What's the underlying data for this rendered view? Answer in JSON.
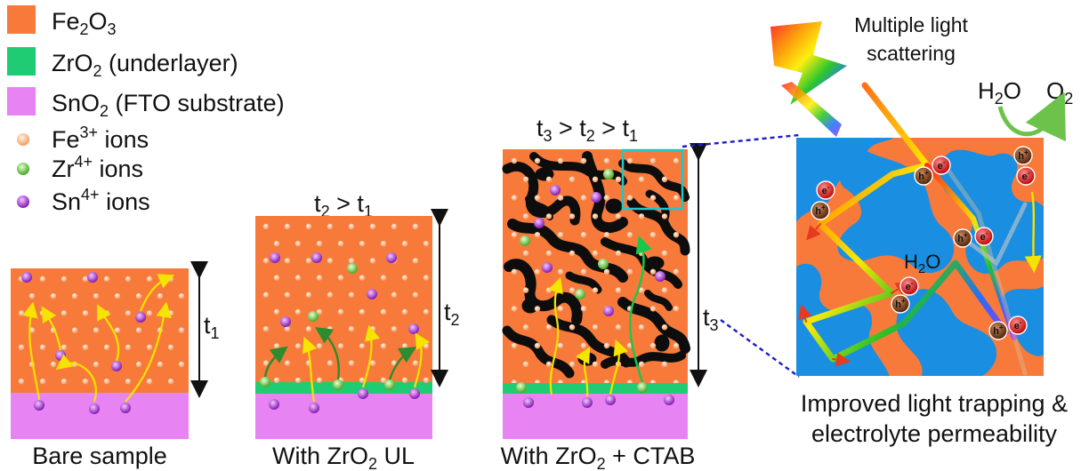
{
  "legend": [
    {
      "formula": "Fe",
      "sub": "2",
      "formula2": "O",
      "sub2": "3",
      "rest": "",
      "swatch": "#f87a3a"
    },
    {
      "formula": "ZrO",
      "sub": "2",
      "formula2": "",
      "sub2": "",
      "rest": " (underlayer)",
      "swatch": "#1fcc74"
    },
    {
      "formula": "SnO",
      "sub": "2",
      "formula2": "",
      "sub2": "",
      "rest": " (FTO substrate)",
      "swatch": "#e883f3"
    }
  ],
  "ions": [
    {
      "el": "Fe",
      "sup": "3+",
      "rest": " ions",
      "color": "#f4a06c"
    },
    {
      "el": "Zr",
      "sup": "4+",
      "rest": " ions",
      "color": "#4fae2e"
    },
    {
      "el": "Sn",
      "sup": "4+",
      "rest": " ions",
      "color": "#9b2fc4"
    }
  ],
  "panels": [
    {
      "caption_main": "Bare sample",
      "caption_sub": "",
      "caption_end": "",
      "thickness_label": "t",
      "thickness_sub": "1",
      "condition_top": ""
    },
    {
      "caption_main": "With ZrO",
      "caption_sub": "2",
      "caption_end": " UL",
      "thickness_label": "t",
      "thickness_sub": "2",
      "condition_top": "t2 > t1"
    },
    {
      "caption_main": "With ZrO",
      "caption_sub": "2",
      "caption_end": " + CTAB",
      "thickness_label": "t",
      "thickness_sub": "3",
      "condition_top": "t3 > t2 > t1"
    }
  ],
  "zoom": {
    "light_label_line1": "Multiple light",
    "light_label_line2": "scattering",
    "reactant": "H2O",
    "product": "O2",
    "inner_label": "H2O",
    "electron": "e",
    "hole": "h",
    "caption_line1": "Improved light trapping &",
    "caption_line2": "electrolyte permeability"
  },
  "colors": {
    "hematite": "#f87a3a",
    "underlayer": "#1fcc74",
    "substrate": "#e883f3",
    "pores": "#0d0d0d",
    "electrolyte": "#1a8ee0",
    "arrow_yellow": "#f5e300",
    "arrow_green_dark": "#2e8b2e",
    "arrow_green": "#18c84a",
    "zoom_box": "#20c6c6",
    "dashed": "#1d1dc8"
  }
}
